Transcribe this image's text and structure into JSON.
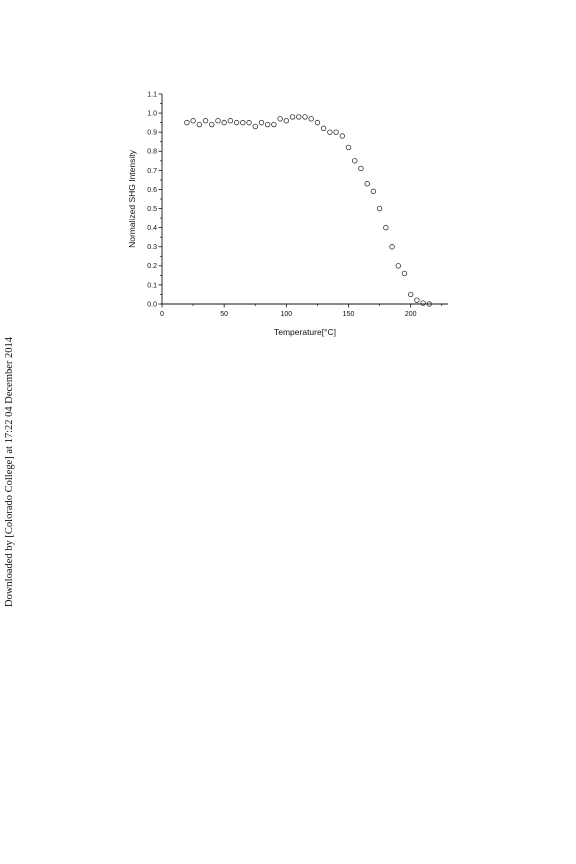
{
  "side_note": "Downloaded by [Colorado College] at 17:22 04 December 2014",
  "chart_data": {
    "type": "scatter",
    "title": "",
    "xlabel": "Temperature[°C]",
    "ylabel": "Normalized SHG Intensity",
    "xlim": [
      0,
      230
    ],
    "ylim": [
      0,
      1.1
    ],
    "xticks": [
      0,
      50,
      100,
      150,
      200
    ],
    "yticks": [
      0.0,
      0.1,
      0.2,
      0.3,
      0.4,
      0.5,
      0.6,
      0.7,
      0.8,
      0.9,
      1.0,
      1.1
    ],
    "marker": "open-circle",
    "grid": false,
    "x": [
      20,
      25,
      30,
      35,
      40,
      45,
      50,
      55,
      60,
      65,
      70,
      75,
      80,
      85,
      90,
      95,
      100,
      105,
      110,
      115,
      120,
      125,
      130,
      135,
      140,
      145,
      150,
      155,
      160,
      165,
      170,
      175,
      180,
      185,
      190,
      195,
      200,
      205,
      210,
      215
    ],
    "y": [
      0.95,
      0.96,
      0.94,
      0.96,
      0.94,
      0.96,
      0.95,
      0.96,
      0.95,
      0.95,
      0.95,
      0.93,
      0.95,
      0.94,
      0.94,
      0.97,
      0.96,
      0.98,
      0.98,
      0.98,
      0.97,
      0.95,
      0.92,
      0.9,
      0.9,
      0.88,
      0.82,
      0.75,
      0.71,
      0.63,
      0.59,
      0.5,
      0.4,
      0.3,
      0.2,
      0.16,
      0.05,
      0.02,
      0.005,
      0.0
    ]
  },
  "colors": {
    "axis": "#111111",
    "marker_stroke": "#333333"
  }
}
